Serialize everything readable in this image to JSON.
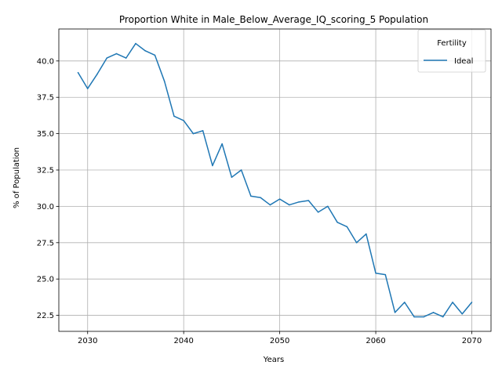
{
  "chart_data": {
    "type": "line",
    "title": "Proportion White in Male_Below_Average_IQ_scoring_5 Population",
    "xlabel": "Years",
    "ylabel": "% of Population",
    "xlim": [
      2027,
      2072
    ],
    "ylim": [
      21.4,
      42.2
    ],
    "xticks": [
      2030,
      2040,
      2050,
      2060,
      2070
    ],
    "yticks": [
      22.5,
      25.0,
      27.5,
      30.0,
      32.5,
      35.0,
      37.5,
      40.0
    ],
    "ytick_labels": [
      "22.5",
      "25.0",
      "27.5",
      "30.0",
      "32.5",
      "35.0",
      "37.5",
      "40.0"
    ],
    "grid": true,
    "legend": {
      "title": "Fertility",
      "placement": "top-right"
    },
    "series": [
      {
        "name": "Ideal",
        "color": "#1f77b4",
        "x": [
          2029,
          2030,
          2031,
          2032,
          2033,
          2034,
          2035,
          2036,
          2037,
          2038,
          2039,
          2040,
          2041,
          2042,
          2043,
          2044,
          2045,
          2046,
          2047,
          2048,
          2049,
          2050,
          2051,
          2052,
          2053,
          2054,
          2055,
          2056,
          2057,
          2058,
          2059,
          2060,
          2061,
          2062,
          2063,
          2064,
          2065,
          2066,
          2067,
          2068,
          2069,
          2070
        ],
        "y": [
          39.2,
          38.1,
          39.1,
          40.2,
          40.5,
          40.2,
          41.2,
          40.7,
          40.4,
          38.6,
          36.2,
          35.9,
          35.0,
          35.2,
          32.8,
          34.3,
          32.0,
          32.5,
          30.7,
          30.6,
          30.1,
          30.5,
          30.1,
          30.3,
          30.4,
          29.6,
          30.0,
          28.9,
          28.6,
          27.5,
          28.1,
          25.4,
          25.3,
          22.7,
          23.4,
          22.4,
          22.4,
          22.7,
          22.4,
          23.4,
          22.6,
          23.4
        ]
      }
    ]
  }
}
